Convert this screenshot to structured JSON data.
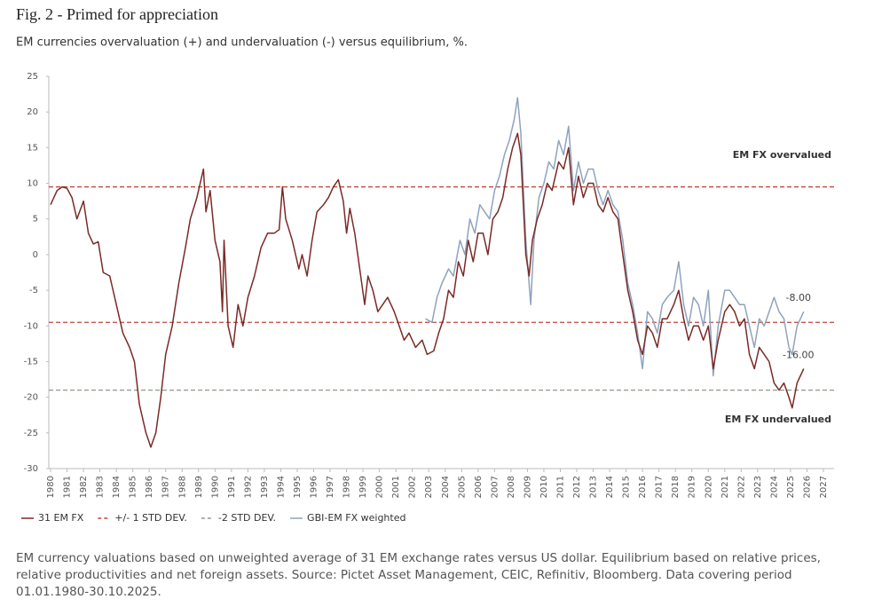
{
  "chart_data": {
    "type": "line",
    "title": "Fig. 2 - Primed for appreciation",
    "subtitle": "EM currencies overvaluation (+) and undervaluation (-) versus equilibrium, %.",
    "xlim": [
      1980,
      2027
    ],
    "xticks": [
      1980,
      1981,
      1982,
      1983,
      1984,
      1985,
      1986,
      1987,
      1988,
      1989,
      1990,
      1991,
      1992,
      1993,
      1994,
      1995,
      1996,
      1997,
      1998,
      1999,
      2000,
      2001,
      2002,
      2003,
      2004,
      2005,
      2006,
      2007,
      2008,
      2009,
      2010,
      2011,
      2012,
      2013,
      2014,
      2015,
      2016,
      2017,
      2018,
      2019,
      2020,
      2021,
      2022,
      2023,
      2024,
      2025,
      2026,
      2027
    ],
    "ylim": [
      -30,
      25
    ],
    "yticks": [
      -30,
      -25,
      -20,
      -15,
      -10,
      -5,
      0,
      5,
      10,
      15,
      20,
      25
    ],
    "series": [
      {
        "name": "GBI-EM FX weighted",
        "color": "#8fa3bd",
        "end_label": "-8.00",
        "x": [
          2002.8,
          2003.2,
          2003.5,
          2003.8,
          2004.2,
          2004.5,
          2004.9,
          2005.2,
          2005.5,
          2005.8,
          2006.1,
          2006.4,
          2006.7,
          2007.0,
          2007.3,
          2007.6,
          2007.9,
          2008.2,
          2008.4,
          2008.6,
          2008.9,
          2009.2,
          2009.4,
          2009.7,
          2010.0,
          2010.3,
          2010.6,
          2010.9,
          2011.2,
          2011.5,
          2011.8,
          2012.1,
          2012.4,
          2012.7,
          2013.0,
          2013.3,
          2013.6,
          2013.9,
          2014.2,
          2014.5,
          2014.8,
          2015.1,
          2015.4,
          2015.7,
          2016.0,
          2016.3,
          2016.6,
          2016.9,
          2017.2,
          2017.5,
          2017.9,
          2018.2,
          2018.5,
          2018.8,
          2019.1,
          2019.4,
          2019.7,
          2020.0,
          2020.3,
          2020.6,
          2021.0,
          2021.3,
          2021.6,
          2021.9,
          2022.2,
          2022.5,
          2022.8,
          2023.1,
          2023.4,
          2023.7,
          2024.0,
          2024.3,
          2024.6,
          2024.9,
          2025.1,
          2025.4,
          2025.8
        ],
        "values": [
          -9,
          -9.5,
          -6,
          -4,
          -2,
          -3,
          2,
          0,
          5,
          3,
          7,
          6,
          5,
          9,
          11,
          14,
          16,
          19,
          22,
          17,
          2,
          -7,
          2,
          8,
          10,
          13,
          12,
          16,
          14,
          18,
          9,
          13,
          10,
          12,
          12,
          9,
          7,
          9,
          7,
          6,
          2,
          -4,
          -7,
          -11,
          -16,
          -8,
          -9,
          -11,
          -7,
          -6,
          -5,
          -1,
          -7,
          -10,
          -6,
          -7,
          -10,
          -5,
          -17,
          -10,
          -5,
          -5,
          -6,
          -7,
          -7,
          -10,
          -13,
          -9,
          -10,
          -8,
          -6,
          -8,
          -9,
          -13,
          -14,
          -10,
          -8
        ]
      },
      {
        "name": "31 EM FX",
        "color": "#7a2a26",
        "end_label": "-16.00",
        "x": [
          1980.0,
          1980.4,
          1980.7,
          1981.0,
          1981.3,
          1981.6,
          1982.0,
          1982.3,
          1982.6,
          1982.9,
          1983.2,
          1983.6,
          1984.0,
          1984.4,
          1984.8,
          1985.1,
          1985.4,
          1985.8,
          1986.1,
          1986.4,
          1986.7,
          1987.0,
          1987.4,
          1987.8,
          1988.2,
          1988.5,
          1988.9,
          1989.1,
          1989.3,
          1989.45,
          1989.7,
          1990.0,
          1990.3,
          1990.45,
          1990.55,
          1990.8,
          1991.1,
          1991.4,
          1991.7,
          1992.0,
          1992.4,
          1992.8,
          1993.2,
          1993.6,
          1993.9,
          1994.1,
          1994.3,
          1994.7,
          1995.1,
          1995.3,
          1995.6,
          1995.9,
          1996.2,
          1996.6,
          1996.9,
          1997.2,
          1997.5,
          1997.8,
          1998.0,
          1998.2,
          1998.5,
          1998.8,
          1999.1,
          1999.3,
          1999.6,
          1999.9,
          2000.2,
          2000.5,
          2000.9,
          2001.2,
          2001.5,
          2001.8,
          2002.2,
          2002.6,
          2002.9,
          2003.3,
          2003.6,
          2003.9,
          2004.2,
          2004.5,
          2004.8,
          2005.1,
          2005.4,
          2005.7,
          2006.0,
          2006.3,
          2006.6,
          2006.9,
          2007.2,
          2007.5,
          2007.8,
          2008.1,
          2008.4,
          2008.6,
          2008.9,
          2009.1,
          2009.3,
          2009.6,
          2009.9,
          2010.2,
          2010.5,
          2010.9,
          2011.2,
          2011.5,
          2011.8,
          2012.1,
          2012.4,
          2012.7,
          2013.0,
          2013.3,
          2013.6,
          2013.9,
          2014.2,
          2014.5,
          2014.8,
          2015.1,
          2015.4,
          2015.7,
          2016.0,
          2016.3,
          2016.6,
          2016.9,
          2017.2,
          2017.5,
          2017.9,
          2018.2,
          2018.5,
          2018.8,
          2019.1,
          2019.4,
          2019.7,
          2020.0,
          2020.3,
          2020.6,
          2021.0,
          2021.3,
          2021.6,
          2021.9,
          2022.2,
          2022.5,
          2022.8,
          2023.1,
          2023.4,
          2023.7,
          2024.0,
          2024.3,
          2024.6,
          2024.9,
          2025.1,
          2025.4,
          2025.8
        ],
        "values": [
          7,
          9,
          9.5,
          9.3,
          8,
          5,
          7.5,
          3,
          1.5,
          1.8,
          -2.5,
          -3,
          -7,
          -11,
          -13,
          -15,
          -21,
          -25,
          -27,
          -25,
          -20,
          -14,
          -10,
          -4,
          1,
          5,
          8,
          10,
          12,
          6,
          9,
          2,
          -1,
          -8,
          2,
          -10,
          -13,
          -7,
          -10,
          -6,
          -3,
          1,
          3,
          3,
          3.5,
          9.5,
          5,
          2,
          -2,
          0,
          -3,
          2,
          6,
          7,
          8,
          9.5,
          10.5,
          7.5,
          3,
          6.5,
          3,
          -2,
          -7,
          -3,
          -5,
          -8,
          -7,
          -6,
          -8,
          -10,
          -12,
          -11,
          -13,
          -12,
          -14,
          -13.5,
          -11,
          -9,
          -5,
          -6,
          -1,
          -3,
          2,
          -1,
          3,
          3,
          0,
          5,
          6,
          8,
          12,
          15,
          17,
          14,
          0,
          -3,
          2,
          5,
          7,
          10,
          9,
          13,
          12,
          15,
          7,
          11,
          8,
          10,
          10,
          7,
          6,
          8,
          6,
          5,
          0,
          -5,
          -8,
          -12,
          -14,
          -10,
          -11,
          -13,
          -9,
          -9,
          -7,
          -5,
          -9,
          -12,
          -10,
          -10,
          -12,
          -10,
          -16,
          -12,
          -8,
          -7,
          -8,
          -10,
          -9,
          -14,
          -16,
          -13,
          -14,
          -15,
          -18,
          -19,
          -18,
          -20,
          -21.5,
          -18,
          -16
        ]
      }
    ],
    "reference_lines": [
      {
        "name": "+/- 1 STD DEV.",
        "color": "#c0463a",
        "values": [
          9.5,
          -9.5
        ]
      },
      {
        "name": "-2 STD DEV.",
        "color": "#8e9b8a",
        "values": [
          -19
        ]
      }
    ],
    "annotations": [
      "EM FX overvalued",
      "EM FX undervalued"
    ],
    "footnote": "EM currency valuations based on unweighted average of 31 EM exchange rates versus US dollar. Equilibrium based on relative prices, relative productivities and net foreign assets. Source: Pictet Asset Management, CEIC, Refinitiv, Bloomberg. Data covering period 01.01.1980-30.10.2025."
  }
}
